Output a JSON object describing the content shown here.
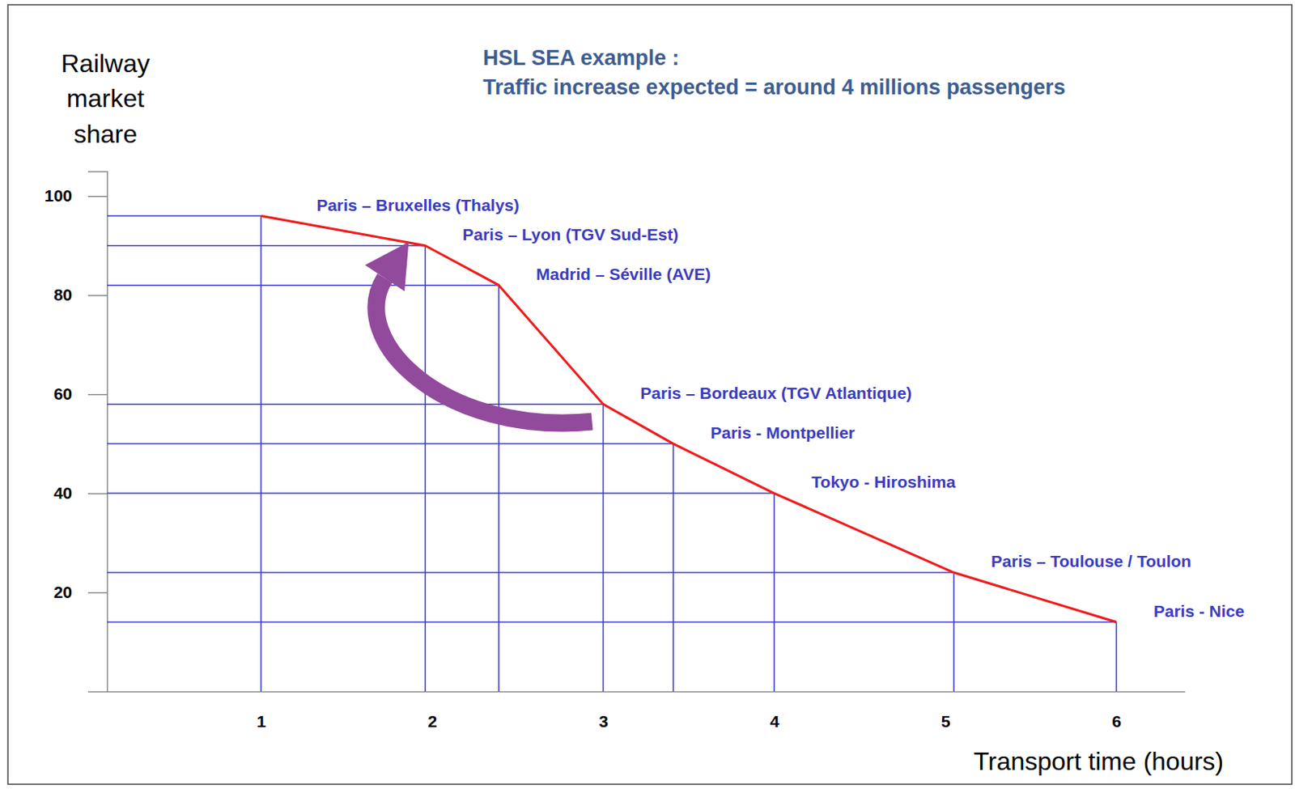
{
  "chart_data": {
    "type": "line",
    "title": "HSL SEA example :",
    "subtitle": "Traffic increase expected = around 4 millions passengers",
    "x_label": "Transport time (hours)",
    "y_label": "Railway market share",
    "x": [
      1,
      1.96,
      2.39,
      3,
      3.41,
      4,
      5.05,
      6
    ],
    "values": [
      96,
      90,
      82,
      58,
      50,
      40,
      24,
      14
    ],
    "annotations": [
      "Paris – Bruxelles (Thalys)",
      "Paris – Lyon (TGV Sud-Est)",
      "Madrid – Séville (AVE)",
      "Paris – Bordeaux (TGV Atlantique)",
      "Paris - Montpellier",
      "Tokyo - Hiroshima",
      "Paris – Toulouse / Toulon",
      "Paris - Nice"
    ],
    "color": "#ee1c1c",
    "xlim": [
      0.1,
      6.4
    ],
    "xticks": [
      1,
      2,
      3,
      4,
      5,
      6
    ],
    "ylim": [
      0,
      105
    ],
    "yticks": [
      20,
      40,
      60,
      80,
      100
    ]
  }
}
